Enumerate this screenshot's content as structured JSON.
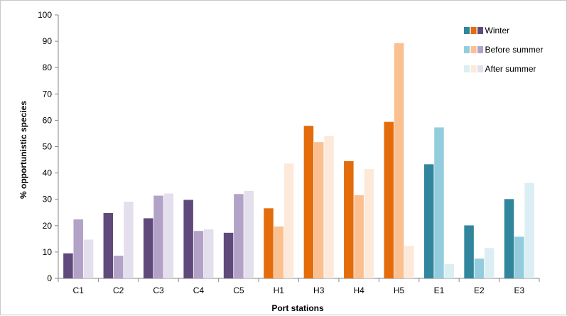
{
  "chart_data": {
    "type": "bar",
    "title": "",
    "xlabel": "Port stations",
    "ylabel": "% opportunistic species",
    "ylim": [
      0,
      100
    ],
    "yticks": [
      0,
      10,
      20,
      30,
      40,
      50,
      60,
      70,
      80,
      90,
      100
    ],
    "categories": [
      "C1",
      "C2",
      "C3",
      "C4",
      "C5",
      "H1",
      "H3",
      "H4",
      "H5",
      "E1",
      "E2",
      "E3"
    ],
    "groups": [
      "C",
      "C",
      "C",
      "C",
      "C",
      "H",
      "H",
      "H",
      "H",
      "E",
      "E",
      "E"
    ],
    "series": [
      {
        "name": "Winter",
        "values": [
          9.5,
          24.8,
          22.8,
          29.8,
          17.3,
          26.6,
          57.9,
          44.5,
          59.4,
          43.3,
          20.1,
          30.1
        ]
      },
      {
        "name": "Before summer",
        "values": [
          22.4,
          8.6,
          31.4,
          18.0,
          32.0,
          19.7,
          51.7,
          31.6,
          89.3,
          57.3,
          7.5,
          15.8
        ]
      },
      {
        "name": "After summer",
        "values": [
          14.7,
          29.1,
          32.2,
          18.6,
          33.2,
          43.6,
          54.1,
          41.5,
          12.3,
          5.4,
          11.5,
          36.2
        ]
      }
    ],
    "group_colors": {
      "C": [
        "#604a7b",
        "#b3a2c7",
        "#e4dfec"
      ],
      "H": [
        "#e46c0a",
        "#fac090",
        "#fde9d9"
      ],
      "E": [
        "#31859c",
        "#93cddd",
        "#dbeef4"
      ]
    },
    "legend": {
      "position": "top-right",
      "entries": [
        {
          "label": "Winter",
          "colors": [
            "#31859c",
            "#e46c0a",
            "#604a7b"
          ]
        },
        {
          "label": "Before summer",
          "colors": [
            "#93cddd",
            "#fac090",
            "#b3a2c7"
          ]
        },
        {
          "label": "After summer",
          "colors": [
            "#dbeef4",
            "#fde9d9",
            "#e4dfec"
          ]
        }
      ]
    },
    "grid": false
  }
}
